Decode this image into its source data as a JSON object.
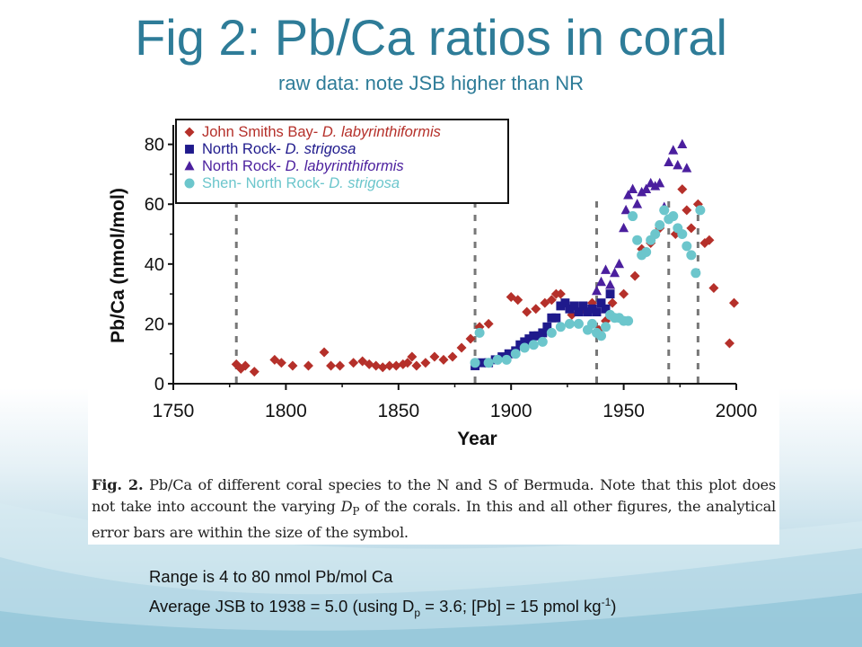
{
  "slide": {
    "title": "Fig 2: Pb/Ca ratios in coral",
    "subtitle": "raw data: note JSB higher than NR",
    "caption": {
      "label": "Fig. 2.",
      "text_before": " Pb/Ca of different coral species to the N and S of Bermuda. Note that this plot does not take into account the varying ",
      "symbol_D": "D",
      "symbol_sub": "P",
      "text_after": " of the corals. In this and all other figures, the analytical error bars are within the size of the symbol."
    },
    "notes": {
      "line1": "Range is 4 to 80 nmol Pb/mol Ca",
      "line2_a": "Average JSB to 1938 = 5.0 (using D",
      "line2_sub": "p",
      "line2_b": " = 3.6; [Pb] = 15 pmol kg",
      "line2_sup": "-1",
      "line2_c": ")"
    }
  },
  "colors": {
    "title": "#2e7c98",
    "jsb": "#b5302a",
    "nr_strigosa": "#1f1a8c",
    "nr_laby": "#4b1f9e",
    "shen": "#6cc6cc"
  },
  "chart_data": {
    "type": "scatter",
    "xlabel": "Year",
    "ylabel": "Pb/Ca (nmol/mol)",
    "xlim": [
      1750,
      2000
    ],
    "ylim": [
      0,
      85
    ],
    "xticks": [
      1750,
      1800,
      1850,
      1900,
      1950,
      2000
    ],
    "yticks": [
      0,
      20,
      40,
      60,
      80
    ],
    "vlines": [
      1778,
      1884,
      1938,
      1970,
      1983
    ],
    "legend_position": "top-left",
    "series": [
      {
        "name": "John Smiths Bay- D. labyrinthiformis",
        "name_plain": "John Smiths Bay- ",
        "name_italic": "D. labyrinthiformis",
        "marker": "diamond",
        "color": "#b5302a",
        "points": [
          [
            1778,
            6.5
          ],
          [
            1780,
            5
          ],
          [
            1782,
            6
          ],
          [
            1786,
            4
          ],
          [
            1795,
            8
          ],
          [
            1798,
            7
          ],
          [
            1803,
            6
          ],
          [
            1810,
            6
          ],
          [
            1817,
            10.5
          ],
          [
            1820,
            6
          ],
          [
            1824,
            6
          ],
          [
            1830,
            7
          ],
          [
            1834,
            7.5
          ],
          [
            1837,
            6.5
          ],
          [
            1840,
            6
          ],
          [
            1843,
            5.5
          ],
          [
            1846,
            6
          ],
          [
            1849,
            6
          ],
          [
            1852,
            6.5
          ],
          [
            1854,
            7
          ],
          [
            1856,
            9
          ],
          [
            1858,
            6
          ],
          [
            1862,
            7
          ],
          [
            1866,
            9
          ],
          [
            1870,
            8
          ],
          [
            1874,
            9
          ],
          [
            1878,
            12
          ],
          [
            1882,
            15
          ],
          [
            1886,
            19
          ],
          [
            1890,
            20
          ],
          [
            1900,
            29
          ],
          [
            1903,
            28
          ],
          [
            1907,
            24
          ],
          [
            1911,
            25
          ],
          [
            1915,
            27
          ],
          [
            1918,
            28
          ],
          [
            1920,
            30
          ],
          [
            1922,
            30
          ],
          [
            1927,
            23
          ],
          [
            1932,
            25
          ],
          [
            1936,
            27
          ],
          [
            1939,
            18
          ],
          [
            1940,
            16
          ],
          [
            1942,
            21
          ],
          [
            1945,
            27
          ],
          [
            1950,
            30
          ],
          [
            1955,
            36
          ],
          [
            1958,
            45
          ],
          [
            1962,
            47
          ],
          [
            1966,
            52
          ],
          [
            1970,
            55
          ],
          [
            1973,
            50
          ],
          [
            1976,
            65
          ],
          [
            1978,
            58
          ],
          [
            1980,
            52
          ],
          [
            1983,
            60
          ],
          [
            1986,
            47
          ],
          [
            1988,
            48
          ],
          [
            1990,
            32
          ],
          [
            1997,
            13.5
          ],
          [
            1999,
            27
          ]
        ]
      },
      {
        "name": "North Rock- D. strigosa",
        "name_plain": "North Rock- ",
        "name_italic": "D. strigosa",
        "marker": "square",
        "color": "#1f1a8c",
        "points": [
          [
            1884,
            6
          ],
          [
            1887,
            7
          ],
          [
            1890,
            7
          ],
          [
            1893,
            8
          ],
          [
            1896,
            9
          ],
          [
            1899,
            10
          ],
          [
            1902,
            11
          ],
          [
            1904,
            13
          ],
          [
            1906,
            14
          ],
          [
            1908,
            15
          ],
          [
            1910,
            16
          ],
          [
            1912,
            16
          ],
          [
            1914,
            17
          ],
          [
            1916,
            19
          ],
          [
            1918,
            22
          ],
          [
            1920,
            22
          ],
          [
            1922,
            26
          ],
          [
            1924,
            27
          ],
          [
            1926,
            25
          ],
          [
            1928,
            26
          ],
          [
            1930,
            24
          ],
          [
            1932,
            26
          ],
          [
            1934,
            24
          ],
          [
            1936,
            25
          ],
          [
            1938,
            24
          ],
          [
            1940,
            27
          ],
          [
            1942,
            25
          ],
          [
            1944,
            30
          ]
        ]
      },
      {
        "name": "North Rock- D. labyrinthiformis",
        "name_plain": "North Rock- ",
        "name_italic": "D. labyrinthiformis",
        "marker": "triangle",
        "color": "#4b1f9e",
        "points": [
          [
            1938,
            31
          ],
          [
            1940,
            34
          ],
          [
            1942,
            38
          ],
          [
            1944,
            33
          ],
          [
            1946,
            37
          ],
          [
            1948,
            40
          ],
          [
            1950,
            52
          ],
          [
            1951,
            58
          ],
          [
            1952,
            63
          ],
          [
            1954,
            65
          ],
          [
            1956,
            60
          ],
          [
            1958,
            64
          ],
          [
            1960,
            65
          ],
          [
            1962,
            67
          ],
          [
            1964,
            66
          ],
          [
            1966,
            67
          ],
          [
            1968,
            59
          ],
          [
            1970,
            74
          ],
          [
            1972,
            78
          ],
          [
            1974,
            73
          ],
          [
            1976,
            80
          ],
          [
            1978,
            72
          ]
        ]
      },
      {
        "name": "Shen- North Rock- D. strigosa",
        "name_plain": "Shen- North Rock- ",
        "name_italic": "D. strigosa",
        "marker": "circle",
        "color": "#6cc6cc",
        "points": [
          [
            1884,
            7
          ],
          [
            1886,
            17
          ],
          [
            1890,
            7
          ],
          [
            1894,
            8
          ],
          [
            1898,
            8
          ],
          [
            1902,
            10
          ],
          [
            1906,
            12
          ],
          [
            1910,
            13
          ],
          [
            1914,
            14
          ],
          [
            1918,
            17
          ],
          [
            1922,
            19
          ],
          [
            1926,
            20
          ],
          [
            1930,
            20
          ],
          [
            1934,
            18
          ],
          [
            1936,
            20
          ],
          [
            1938,
            17
          ],
          [
            1940,
            16
          ],
          [
            1942,
            19
          ],
          [
            1944,
            23
          ],
          [
            1946,
            22
          ],
          [
            1948,
            22
          ],
          [
            1950,
            21
          ],
          [
            1952,
            21
          ],
          [
            1954,
            56
          ],
          [
            1956,
            48
          ],
          [
            1958,
            43
          ],
          [
            1960,
            44
          ],
          [
            1962,
            48
          ],
          [
            1964,
            50
          ],
          [
            1966,
            53
          ],
          [
            1968,
            58
          ],
          [
            1970,
            55
          ],
          [
            1972,
            56
          ],
          [
            1974,
            52
          ],
          [
            1976,
            50
          ],
          [
            1978,
            46
          ],
          [
            1980,
            43
          ],
          [
            1982,
            37
          ],
          [
            1984,
            58
          ]
        ]
      }
    ]
  }
}
